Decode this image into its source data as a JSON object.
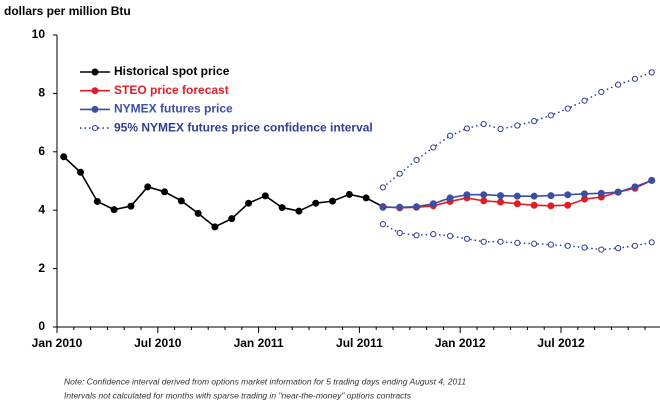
{
  "chart_data": {
    "type": "line",
    "y_label": "dollars per million Btu",
    "categories": [
      "Jan 2010",
      null,
      null,
      null,
      null,
      null,
      "Jul 2010",
      null,
      null,
      null,
      null,
      null,
      "Jan 2011",
      null,
      null,
      null,
      null,
      null,
      "Jul 2011",
      null,
      null,
      null,
      null,
      null,
      "Jan 2012",
      null,
      null,
      null,
      null,
      null,
      "Jul 2012",
      null,
      null,
      null,
      null,
      null
    ],
    "series": [
      {
        "name": "Historical spot price",
        "color": "#000000",
        "style": "solid",
        "values": [
          5.83,
          5.3,
          4.3,
          4.02,
          4.14,
          4.8,
          4.63,
          4.32,
          3.89,
          3.43,
          3.71,
          4.24,
          4.49,
          4.09,
          3.97,
          4.24,
          4.31,
          4.54,
          4.42,
          4.12,
          null,
          null,
          null,
          null,
          null,
          null,
          null,
          null,
          null,
          null,
          null,
          null,
          null,
          null,
          null,
          null
        ]
      },
      {
        "name": "STEO price forecast",
        "color": "#e31d23",
        "style": "solid",
        "values": [
          null,
          null,
          null,
          null,
          null,
          null,
          null,
          null,
          null,
          null,
          null,
          null,
          null,
          null,
          null,
          null,
          null,
          null,
          null,
          4.12,
          4.08,
          4.1,
          4.15,
          4.3,
          4.42,
          4.32,
          4.28,
          4.22,
          4.17,
          4.15,
          4.17,
          4.38,
          4.45,
          4.62,
          4.75,
          5.02
        ]
      },
      {
        "name": "NYMEX futures price",
        "color": "#3b4fa3",
        "style": "solid",
        "values": [
          null,
          null,
          null,
          null,
          null,
          null,
          null,
          null,
          null,
          null,
          null,
          null,
          null,
          null,
          null,
          null,
          null,
          null,
          null,
          4.1,
          4.1,
          4.12,
          4.22,
          4.42,
          4.53,
          4.53,
          4.5,
          4.48,
          4.48,
          4.5,
          4.53,
          4.56,
          4.58,
          4.62,
          4.8,
          5.02
        ]
      },
      {
        "name": "95% NYMEX futures price confidence interval",
        "color": "#2e3f94",
        "style": "dotted",
        "upper": [
          null,
          null,
          null,
          null,
          null,
          null,
          null,
          null,
          null,
          null,
          null,
          null,
          null,
          null,
          null,
          null,
          null,
          null,
          null,
          4.78,
          5.25,
          5.72,
          6.15,
          6.55,
          6.8,
          6.95,
          6.78,
          6.9,
          7.05,
          7.25,
          7.48,
          7.75,
          8.05,
          8.3,
          8.5,
          8.72
        ],
        "lower": [
          null,
          null,
          null,
          null,
          null,
          null,
          null,
          null,
          null,
          null,
          null,
          null,
          null,
          null,
          null,
          null,
          null,
          null,
          null,
          3.52,
          3.22,
          3.14,
          3.18,
          3.12,
          3.02,
          2.92,
          2.92,
          2.88,
          2.85,
          2.82,
          2.78,
          2.72,
          2.65,
          2.7,
          2.78,
          2.9
        ]
      }
    ],
    "ylim": [
      0,
      10
    ],
    "yticks": [
      0,
      2,
      4,
      6,
      8,
      10
    ],
    "grid": false,
    "legend": "upper left",
    "notes": [
      "Note: Confidence interval derived from options market information for 5 trading days ending August 4, 2011",
      "Intervals not calculated for months with sparse trading in \"near-the-money\" options contracts"
    ]
  }
}
